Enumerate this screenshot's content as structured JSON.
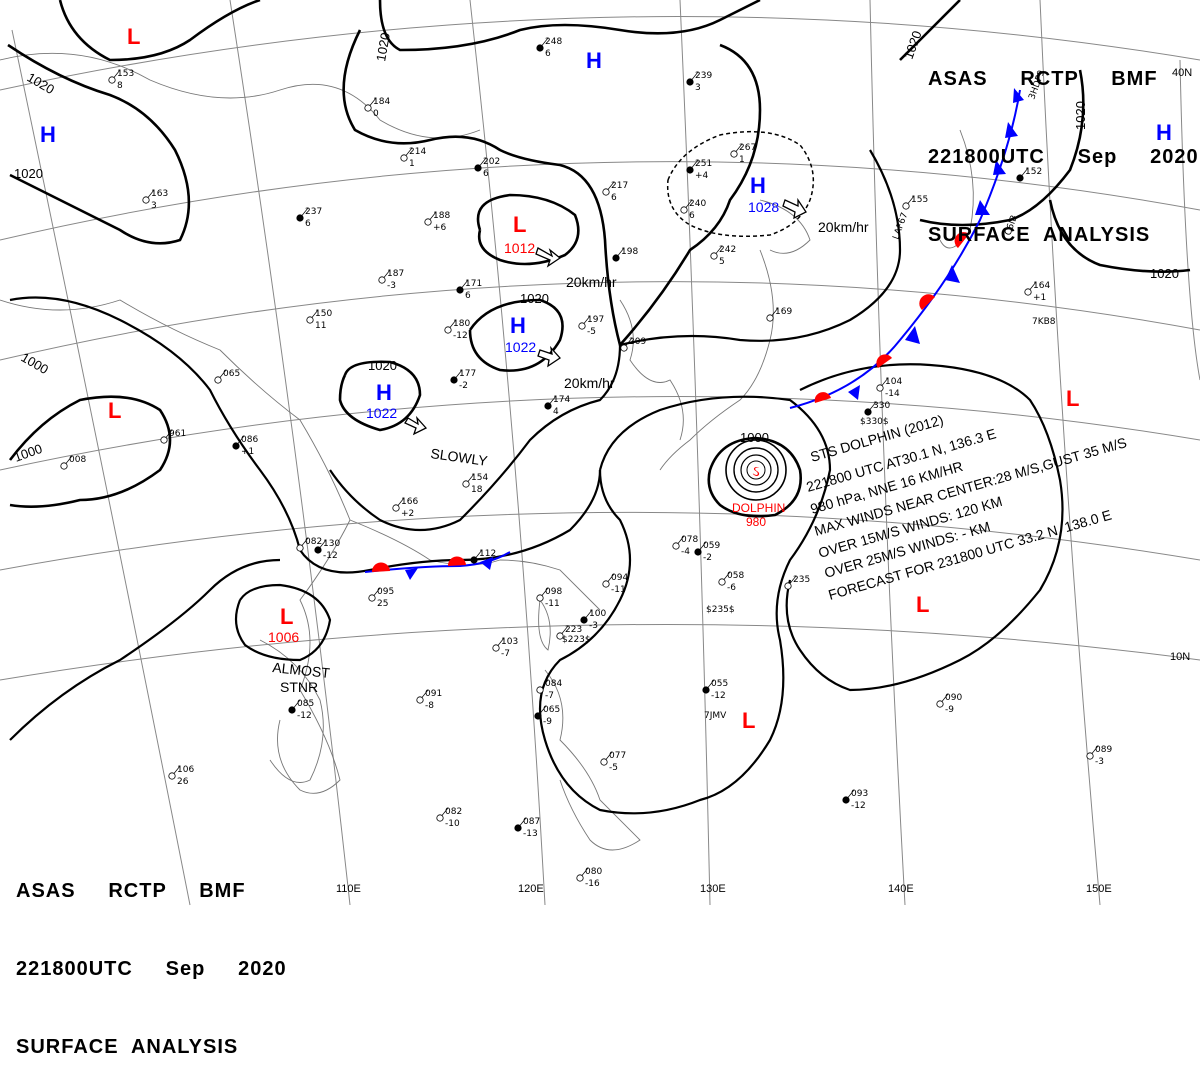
{
  "header": {
    "line1": "ASAS     RCTP     BMF",
    "line2": "221800UTC     Sep     2020",
    "line3": "SURFACE  ANALYSIS"
  },
  "colors": {
    "isobar": "#000000",
    "high": "#0000ff",
    "low": "#ff0000",
    "front_warm": "#ff0000",
    "front_cold": "#0000ff",
    "background": "#ffffff"
  },
  "isobar_labels": [
    "1020",
    "1020",
    "1020",
    "1020",
    "1020",
    "1020",
    "1020",
    "1020",
    "1000",
    "1000",
    "1000"
  ],
  "pressure_systems": {
    "highs": [
      {
        "symbol": "H",
        "value": ""
      },
      {
        "symbol": "H",
        "value": ""
      },
      {
        "symbol": "H",
        "value": "1028",
        "motion": "20km/hr"
      },
      {
        "symbol": "H",
        "value": "1022",
        "motion": "20km/hr"
      },
      {
        "symbol": "H",
        "value": "1022",
        "motion": "SLOWLY"
      },
      {
        "symbol": "H",
        "value": ""
      }
    ],
    "lows": [
      {
        "symbol": "L",
        "value": ""
      },
      {
        "symbol": "L",
        "value": "1012",
        "motion": "20km/hr"
      },
      {
        "symbol": "L",
        "value": ""
      },
      {
        "symbol": "L",
        "value": "1006",
        "motion": "ALMOST STNR"
      },
      {
        "symbol": "L",
        "value": ""
      },
      {
        "symbol": "L",
        "value": ""
      },
      {
        "symbol": "L",
        "value": ""
      }
    ]
  },
  "motion": {
    "slowly": "SLOWLY",
    "almost": "ALMOST",
    "stnr": "STNR",
    "kmhr": "20km/hr"
  },
  "typhoon": {
    "name_label": "DOLPHIN",
    "center_pressure": "980",
    "text_lines": [
      "STS  DOLPHIN  (2012)",
      "221800 UTC  AT30.1 N, 136.3 E",
      "980 hPa, NNE  16 KM/HR",
      "MAX WINDS NEAR CENTER:28 M/S,GUST 35 M/S",
      "OVER 15M/S WINDS: 120 KM",
      "OVER 25M/S WINDS: - KM",
      "FORECAST FOR 231800 UTC 33.2 N, 138.0 E"
    ]
  },
  "grid_labels": {
    "lon": [
      "110E",
      "120E",
      "130E",
      "140E",
      "150E"
    ],
    "lat": [
      "40N",
      "10N"
    ]
  },
  "stations": [
    {
      "id": "248",
      "p": "6"
    },
    {
      "id": "153",
      "p": "8"
    },
    {
      "id": "163",
      "p": "3"
    },
    {
      "id": "237",
      "p": "6"
    },
    {
      "id": "217",
      "p": "6"
    },
    {
      "id": "267",
      "p": "1"
    },
    {
      "id": "251",
      "p": "+4"
    },
    {
      "id": "240",
      "p": "6"
    },
    {
      "id": "242",
      "p": "5"
    },
    {
      "id": "239",
      "p": "3"
    },
    {
      "id": "188",
      "p": "+6"
    },
    {
      "id": "187",
      "p": "-3"
    },
    {
      "id": "171",
      "p": "6"
    },
    {
      "id": "180",
      "p": "-12"
    },
    {
      "id": "150",
      "p": "11"
    },
    {
      "id": "177",
      "p": "-2"
    },
    {
      "id": "154",
      "p": "18"
    },
    {
      "id": "166",
      "p": "+2"
    },
    {
      "id": "130",
      "p": "-12"
    },
    {
      "id": "095",
      "p": "25"
    },
    {
      "id": "091",
      "p": "-8"
    },
    {
      "id": "085",
      "p": "-12"
    },
    {
      "id": "106",
      "p": "26"
    },
    {
      "id": "082",
      "p": "-10"
    },
    {
      "id": "087",
      "p": "-13"
    },
    {
      "id": "080",
      "p": "-16"
    },
    {
      "id": "084",
      "p": "-7"
    },
    {
      "id": "065",
      "p": "-9"
    },
    {
      "id": "077",
      "p": "-5"
    },
    {
      "id": "098",
      "p": "-11"
    },
    {
      "id": "100",
      "p": "-3"
    },
    {
      "id": "094",
      "p": "-11"
    },
    {
      "id": "103",
      "p": "-7"
    },
    {
      "id": "059",
      "p": "-2"
    },
    {
      "id": "058",
      "p": "-6"
    },
    {
      "id": "078",
      "p": "-4"
    },
    {
      "id": "055",
      "p": "-12"
    },
    {
      "id": "090",
      "p": "-9"
    },
    {
      "id": "089",
      "p": "-3"
    },
    {
      "id": "093",
      "p": "-12"
    },
    {
      "id": "104",
      "p": "-14"
    },
    {
      "id": "164",
      "p": "+1"
    },
    {
      "id": "112",
      "p": ""
    },
    {
      "id": "008",
      "p": ""
    },
    {
      "id": "961",
      "p": ""
    },
    {
      "id": "086",
      "p": "+1"
    },
    {
      "id": "065",
      "p": ""
    },
    {
      "id": "082",
      "p": ""
    },
    {
      "id": "174",
      "p": "4"
    },
    {
      "id": "197",
      "p": "-5"
    },
    {
      "id": "209",
      "p": ""
    },
    {
      "id": "198",
      "p": ""
    },
    {
      "id": "169",
      "p": ""
    },
    {
      "id": "155",
      "p": ""
    },
    {
      "id": "152",
      "p": ""
    },
    {
      "id": "184",
      "p": "0"
    },
    {
      "id": "214",
      "p": "1"
    },
    {
      "id": "202",
      "p": "6"
    },
    {
      "id": "235",
      "p": ""
    },
    {
      "id": "223",
      "p": ""
    },
    {
      "id": "330",
      "p": ""
    }
  ],
  "station_misc": [
    "$235$",
    "$223$",
    "$330$",
    "7KB8",
    "7JMV",
    "3HDF9",
    "LAF67",
    "C6IB"
  ]
}
